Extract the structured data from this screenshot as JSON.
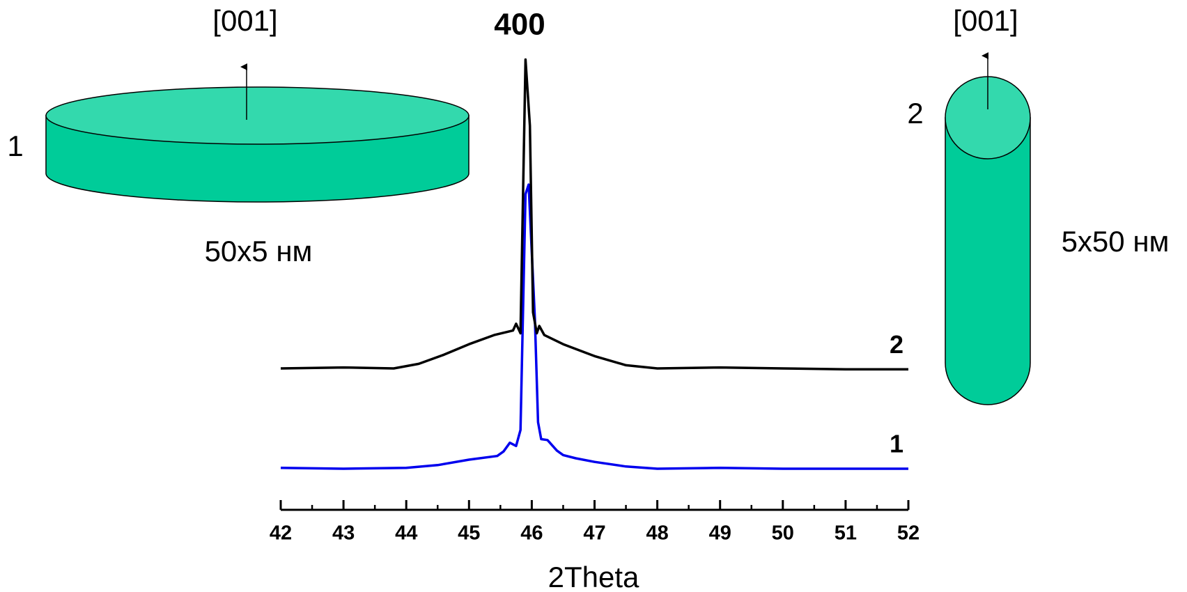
{
  "chart_data": {
    "type": "line",
    "x_label": "2Theta",
    "peak_label": "400",
    "xlim": [
      42,
      52
    ],
    "xticks": [
      42,
      43,
      44,
      45,
      46,
      47,
      48,
      49,
      50,
      51,
      52
    ],
    "xminorticks": [
      42.5,
      43.5,
      44.5,
      45.5,
      46.5,
      47.5,
      48.5,
      49.5,
      50.5,
      51.5
    ],
    "ylim": [
      0,
      100
    ],
    "series": [
      {
        "name": "1",
        "color": "#0000ee",
        "x": [
          42,
          43,
          44,
          44.5,
          45,
          45.45,
          45.55,
          45.65,
          45.75,
          45.82,
          45.9,
          45.95,
          46.05,
          46.1,
          46.15,
          46.25,
          46.4,
          46.5,
          46.7,
          47,
          47.5,
          48,
          49,
          50,
          51,
          52
        ],
        "values": [
          9.2,
          9,
          9.2,
          9.8,
          11,
          11.8,
          12.8,
          14.7,
          14,
          17.5,
          69.2,
          71.3,
          41.7,
          19.2,
          15.5,
          15.3,
          13,
          12,
          11.3,
          10.5,
          9.5,
          9,
          9.2,
          9,
          9,
          9
        ]
      },
      {
        "name": "2",
        "color": "#000000",
        "x": [
          42,
          43,
          43.8,
          44.2,
          44.6,
          45,
          45.4,
          45.7,
          45.75,
          45.82,
          45.9,
          45.97,
          46.02,
          46.08,
          46.12,
          46.2,
          46.5,
          47,
          47.5,
          48,
          49,
          50,
          51,
          52
        ],
        "values": [
          31,
          31.2,
          31,
          32,
          34,
          36.3,
          38.3,
          39.3,
          40.8,
          38.7,
          98.7,
          84.2,
          43.3,
          38.7,
          40.3,
          38.3,
          36.3,
          33.7,
          31.7,
          31,
          31.2,
          31,
          30.8,
          30.8
        ]
      }
    ],
    "insets": [
      {
        "direction": "[001]",
        "label": "1",
        "size": "50x5 нм"
      },
      {
        "direction": "[001]",
        "label": "2",
        "size": "5x50 нм"
      }
    ]
  }
}
